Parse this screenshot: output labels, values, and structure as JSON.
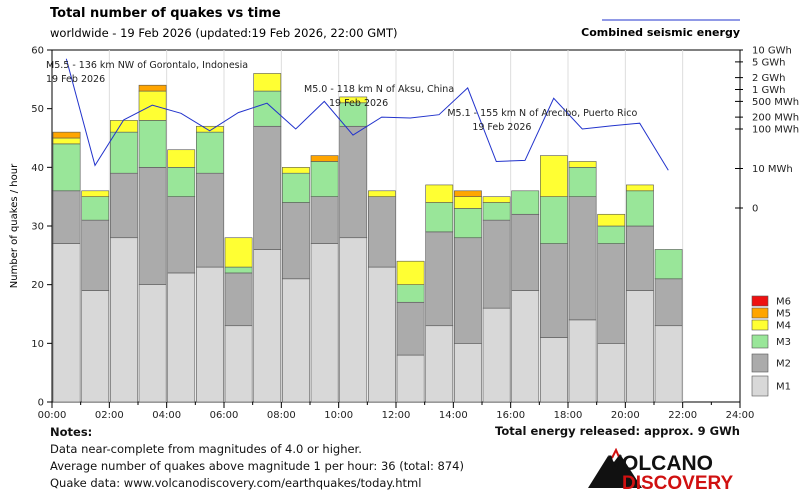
{
  "header": {
    "title": "Total number of quakes vs time",
    "subtitle": "worldwide - 19 Feb 2026 (updated:19 Feb 2026, 22:00 GMT)",
    "energy_legend": "Combined seismic energy"
  },
  "chart_data": {
    "type": "bar",
    "stacked": true,
    "title": "Total number of quakes vs time",
    "ylabel": "Number of quakes / hour",
    "xlabel": "",
    "ylim": [
      0,
      60
    ],
    "yticks": [
      "0",
      "10",
      "20",
      "30",
      "40",
      "50",
      "60"
    ],
    "xticks": [
      "00:00",
      "02:00",
      "04:00",
      "06:00",
      "08:00",
      "10:00",
      "12:00",
      "14:00",
      "16:00",
      "18:00",
      "20:00",
      "22:00",
      "24:00"
    ],
    "hours": [
      0,
      1,
      2,
      3,
      4,
      5,
      6,
      7,
      8,
      9,
      10,
      11,
      12,
      13,
      14,
      15,
      16,
      17,
      18,
      19,
      20,
      21
    ],
    "series": [
      {
        "name": "M1",
        "color": "#d8d8d8",
        "values": [
          27,
          19,
          28,
          20,
          22,
          23,
          13,
          26,
          21,
          27,
          28,
          23,
          8,
          13,
          10,
          16,
          19,
          11,
          14,
          10,
          19,
          13
        ]
      },
      {
        "name": "M2",
        "color": "#ababab",
        "values": [
          9,
          12,
          11,
          20,
          13,
          16,
          9,
          21,
          13,
          8,
          19,
          12,
          9,
          16,
          18,
          15,
          13,
          16,
          21,
          17,
          11,
          8
        ]
      },
      {
        "name": "M3",
        "color": "#99e699",
        "values": [
          8,
          4,
          7,
          8,
          5,
          7,
          1,
          6,
          5,
          6,
          4,
          0,
          3,
          5,
          5,
          3,
          4,
          8,
          5,
          3,
          6,
          5
        ]
      },
      {
        "name": "M4",
        "color": "#ffff33",
        "values": [
          1,
          1,
          2,
          5,
          3,
          1,
          5,
          3,
          1,
          0,
          1,
          1,
          4,
          3,
          2,
          1,
          0,
          7,
          1,
          2,
          1,
          0
        ]
      },
      {
        "name": "M5",
        "color": "#ffa500",
        "values": [
          1,
          0,
          0,
          1,
          0,
          0,
          0,
          0,
          0,
          1,
          0,
          0,
          0,
          0,
          1,
          0,
          0,
          0,
          0,
          0,
          0,
          0
        ]
      },
      {
        "name": "M6",
        "color": "#ee1111",
        "values": [
          0,
          0,
          0,
          0,
          0,
          0,
          0,
          0,
          0,
          0,
          0,
          0,
          0,
          0,
          0,
          0,
          0,
          0,
          0,
          0,
          0,
          0
        ]
      }
    ],
    "energy": {
      "name": "Combined seismic energy",
      "color": "#2233cc",
      "scale_labels": [
        "10 GWh",
        "5 GWh",
        "2 GWh",
        "1 GWh",
        "500 MWh",
        "200 MWh",
        "100 MWh",
        "10 MWh",
        "0"
      ],
      "scale_values_mwh": [
        10000,
        5000,
        2000,
        1000,
        500,
        200,
        100,
        10,
        0
      ],
      "values_mwh": [
        6000,
        12,
        170,
        400,
        250,
        90,
        260,
        450,
        100,
        500,
        70,
        200,
        190,
        230,
        1100,
        15,
        16,
        600,
        100,
        120,
        140,
        9
      ]
    },
    "annotations": [
      {
        "hour": 0,
        "lines": [
          "M5.5 - 136 km NW of Gorontalo, Indonesia",
          "19 Feb 2026"
        ]
      },
      {
        "hour": 9,
        "lines": [
          "M5.0 - 118 km N of Aksu, China",
          "19 Feb 2026"
        ]
      },
      {
        "hour": 14,
        "lines": [
          "M5.1 - 155 km N of Arecibo, Puerto Rico",
          "19 Feb 2026"
        ]
      }
    ],
    "legend": [
      "M6",
      "M5",
      "M4",
      "M3",
      "M2",
      "M1"
    ]
  },
  "notes": {
    "heading": "Notes:",
    "line1": "Data near-complete from magnitudes of 4.0 or higher.",
    "line2": "Average number of quakes above magnitude 1 per hour: 36 (total: 874)",
    "line3": "Quake data: www.volcanodiscovery.com/earthquakes/today.html"
  },
  "energy_total": "Total energy released: approx. 9 GWh",
  "logo": {
    "word1": "VOLCANO",
    "word2": "DISCOVERY"
  }
}
